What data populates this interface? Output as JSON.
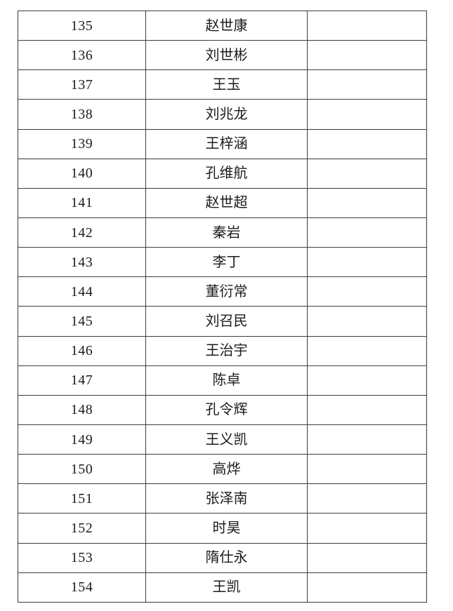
{
  "table": {
    "rows": [
      {
        "no": "135",
        "name": "赵世康"
      },
      {
        "no": "136",
        "name": "刘世彬"
      },
      {
        "no": "137",
        "name": "王玉"
      },
      {
        "no": "138",
        "name": "刘兆龙"
      },
      {
        "no": "139",
        "name": "王梓涵"
      },
      {
        "no": "140",
        "name": "孔维航"
      },
      {
        "no": "141",
        "name": "赵世超"
      },
      {
        "no": "142",
        "name": "秦岩"
      },
      {
        "no": "143",
        "name": "李丁"
      },
      {
        "no": "144",
        "name": "董衍常"
      },
      {
        "no": "145",
        "name": "刘召民"
      },
      {
        "no": "146",
        "name": "王治宇"
      },
      {
        "no": "147",
        "name": "陈卓"
      },
      {
        "no": "148",
        "name": "孔令辉"
      },
      {
        "no": "149",
        "name": "王义凯"
      },
      {
        "no": "150",
        "name": "高烨"
      },
      {
        "no": "151",
        "name": "张泽南"
      },
      {
        "no": "152",
        "name": "时昊"
      },
      {
        "no": "153",
        "name": "隋仕永"
      },
      {
        "no": "154",
        "name": "王凯"
      }
    ]
  },
  "colors": {
    "grid_line": "#3c3c3c",
    "text": "#1c1c1c",
    "background": "#ffffff"
  }
}
